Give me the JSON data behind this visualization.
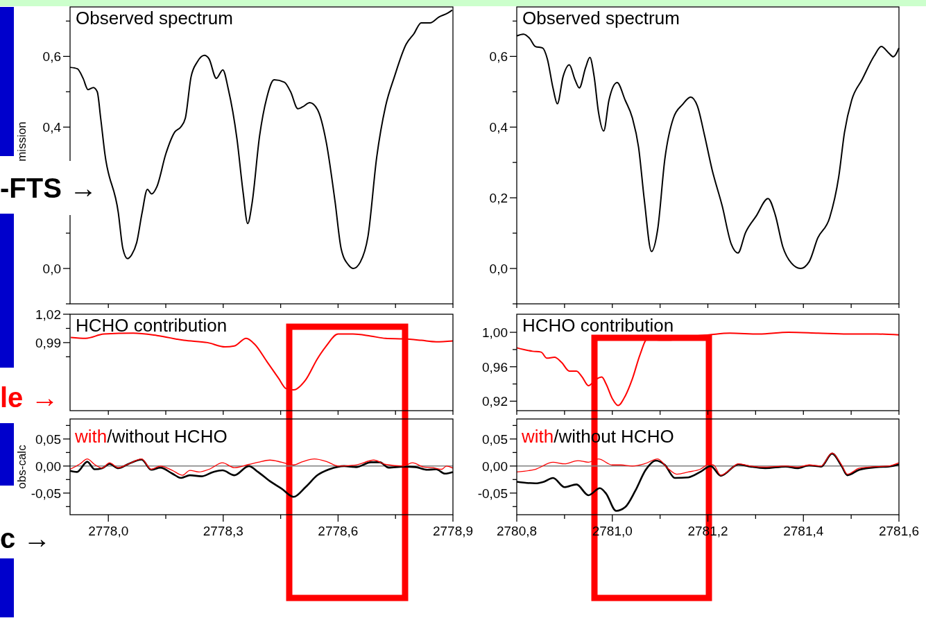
{
  "chart_data": [
    {
      "type": "line",
      "title": "Observed spectrum",
      "ylabel": "mission",
      "annotations": [
        "-FTS →"
      ],
      "tick_labels": "y",
      "xlim": [
        2777.9,
        2778.9
      ],
      "xticks": [
        {
          "value": 2778.0,
          "label": null
        },
        {
          "value": 2778.15,
          "label": null
        },
        {
          "value": 2778.3,
          "label": null
        },
        {
          "value": 2778.45,
          "label": null
        },
        {
          "value": 2778.6,
          "label": null
        },
        {
          "value": 2778.75,
          "label": null
        },
        {
          "value": 2778.9,
          "label": null
        }
      ],
      "ylim": [
        -0.1,
        0.74
      ],
      "yticks": [
        {
          "value": -0.1,
          "label": null
        },
        {
          "value": 0,
          "label": "0,0"
        },
        {
          "value": 0.1,
          "label": null
        },
        {
          "value": 0.2,
          "label": null
        },
        {
          "value": 0.3,
          "label": null
        },
        {
          "value": 0.4,
          "label": "0,4"
        },
        {
          "value": 0.5,
          "label": null
        },
        {
          "value": 0.6,
          "label": "0,6"
        },
        {
          "value": 0.7,
          "label": null
        }
      ],
      "series": [
        {
          "color": "#000000",
          "x": [
            2777.9,
            2777.919,
            2777.934,
            2777.947,
            2777.961,
            2777.971,
            2777.98,
            2777.991,
            2778.026,
            2778.038,
            2778.05,
            2778.061,
            2778.074,
            2778.088,
            2778.102,
            2778.113,
            2778.127,
            2778.15,
            2778.174,
            2778.189,
            2778.201,
            2778.216,
            2778.232,
            2778.251,
            2778.263,
            2778.282,
            2778.299,
            2778.313,
            2778.336,
            2778.352,
            2778.364,
            2778.375,
            2778.395,
            2778.414,
            2778.433,
            2778.46,
            2778.476,
            2778.495,
            2778.507,
            2778.526,
            2778.546,
            2778.569,
            2778.592,
            2778.608,
            2778.627,
            2778.64,
            2778.658,
            2778.678,
            2778.701,
            2778.724,
            2778.747,
            2778.778,
            2778.798,
            2778.817,
            2778.84,
            2778.864,
            2778.887,
            2778.898
          ],
          "values": [
            0.569,
            0.565,
            0.538,
            0.506,
            0.512,
            0.5,
            0.425,
            0.324,
            0.158,
            0.056,
            0.028,
            0.039,
            0.073,
            0.157,
            0.224,
            0.211,
            0.232,
            0.324,
            0.387,
            0.4,
            0.425,
            0.542,
            0.584,
            0.603,
            0.593,
            0.538,
            0.562,
            0.509,
            0.366,
            0.215,
            0.127,
            0.182,
            0.375,
            0.484,
            0.534,
            0.527,
            0.5,
            0.452,
            0.457,
            0.469,
            0.45,
            0.358,
            0.19,
            0.056,
            0.01,
            0.0,
            0.018,
            0.09,
            0.316,
            0.459,
            0.542,
            0.635,
            0.664,
            0.695,
            0.695,
            0.712,
            0.723,
            0.731
          ]
        }
      ]
    },
    {
      "type": "line",
      "title": "Observed spectrum",
      "tick_labels": "y",
      "xlim": [
        2780.8,
        2781.6
      ],
      "xticks": [
        {
          "value": 2780.8,
          "label": null
        },
        {
          "value": 2780.9,
          "label": null
        },
        {
          "value": 2781.0,
          "label": null
        },
        {
          "value": 2781.1,
          "label": null
        },
        {
          "value": 2781.2,
          "label": null
        },
        {
          "value": 2781.3,
          "label": null
        },
        {
          "value": 2781.4,
          "label": null
        },
        {
          "value": 2781.5,
          "label": null
        },
        {
          "value": 2781.6,
          "label": null
        }
      ],
      "ylim": [
        -0.1,
        0.74
      ],
      "yticks": [
        {
          "value": -0.1,
          "label": null
        },
        {
          "value": 0,
          "label": "0,0"
        },
        {
          "value": 0.1,
          "label": null
        },
        {
          "value": 0.2,
          "label": "0,2"
        },
        {
          "value": 0.3,
          "label": null
        },
        {
          "value": 0.4,
          "label": "0,4"
        },
        {
          "value": 0.5,
          "label": null
        },
        {
          "value": 0.6,
          "label": "0,6"
        },
        {
          "value": 0.7,
          "label": null
        }
      ],
      "series": [
        {
          "color": "#000000",
          "x": [
            2780.8,
            2780.814,
            2780.827,
            2780.839,
            2780.854,
            2780.864,
            2780.876,
            2780.885,
            2780.897,
            2780.91,
            2780.922,
            2780.931,
            2780.944,
            2780.953,
            2780.962,
            2780.971,
            2780.982,
            2780.993,
            2781.01,
            2781.027,
            2781.042,
            2781.055,
            2781.067,
            2781.082,
            2781.095,
            2781.11,
            2781.128,
            2781.147,
            2781.164,
            2781.178,
            2781.193,
            2781.209,
            2781.23,
            2781.249,
            2781.263,
            2781.279,
            2781.301,
            2781.326,
            2781.341,
            2781.357,
            2781.375,
            2781.394,
            2781.412,
            2781.43,
            2781.455,
            2781.474,
            2781.486,
            2781.501,
            2781.523,
            2781.548,
            2781.563,
            2781.579,
            2781.588,
            2781.6
          ],
          "values": [
            0.658,
            0.663,
            0.651,
            0.628,
            0.624,
            0.593,
            0.51,
            0.466,
            0.543,
            0.576,
            0.534,
            0.511,
            0.568,
            0.597,
            0.543,
            0.443,
            0.389,
            0.476,
            0.526,
            0.476,
            0.426,
            0.343,
            0.194,
            0.048,
            0.111,
            0.31,
            0.426,
            0.464,
            0.485,
            0.46,
            0.377,
            0.279,
            0.177,
            0.069,
            0.044,
            0.102,
            0.148,
            0.198,
            0.152,
            0.061,
            0.015,
            0.0,
            0.019,
            0.086,
            0.144,
            0.26,
            0.385,
            0.476,
            0.535,
            0.601,
            0.628,
            0.609,
            0.599,
            0.624
          ]
        }
      ]
    },
    {
      "type": "line",
      "title": "HCHO contribution",
      "annotations": [
        "le →"
      ],
      "tick_labels": "y",
      "xlim": [
        2777.9,
        2778.9
      ],
      "xticks": [
        {
          "value": 2778.0,
          "label": null
        },
        {
          "value": 2778.15,
          "label": null
        },
        {
          "value": 2778.3,
          "label": null
        },
        {
          "value": 2778.45,
          "label": null
        },
        {
          "value": 2778.6,
          "label": null
        },
        {
          "value": 2778.75,
          "label": null
        },
        {
          "value": 2778.9,
          "label": null
        }
      ],
      "ylim": [
        0.918,
        1.02
      ],
      "yticks": [
        {
          "value": 0.975,
          "label": null
        },
        {
          "value": 0.99,
          "label": "0,99"
        },
        {
          "value": 1.005,
          "label": null
        },
        {
          "value": 1.02,
          "label": "1,02"
        }
      ],
      "series": [
        {
          "color": "#ff0000",
          "x": [
            2777.902,
            2777.941,
            2777.988,
            2778.065,
            2778.127,
            2778.197,
            2778.259,
            2778.305,
            2778.329,
            2778.36,
            2778.383,
            2778.414,
            2778.445,
            2778.464,
            2778.484,
            2778.515,
            2778.546,
            2778.569,
            2778.6,
            2778.639,
            2778.685,
            2778.724,
            2778.771,
            2778.817,
            2778.856,
            2778.9
          ],
          "values": [
            0.9954,
            0.9945,
            0.999,
            1.0,
            0.9975,
            0.9924,
            0.99,
            0.9855,
            0.9864,
            0.9945,
            0.9879,
            0.97,
            0.952,
            0.9414,
            0.94,
            0.9504,
            0.9729,
            0.9864,
            0.999,
            0.999,
            0.9969,
            0.9945,
            0.9939,
            0.9924,
            0.9909,
            0.9918
          ]
        }
      ]
    },
    {
      "type": "line",
      "title": "HCHO contribution",
      "tick_labels": "y",
      "xlim": [
        2780.8,
        2781.6
      ],
      "xticks": [
        {
          "value": 2780.8,
          "label": null
        },
        {
          "value": 2780.9,
          "label": null
        },
        {
          "value": 2781.0,
          "label": null
        },
        {
          "value": 2781.1,
          "label": null
        },
        {
          "value": 2781.2,
          "label": null
        },
        {
          "value": 2781.3,
          "label": null
        },
        {
          "value": 2781.4,
          "label": null
        },
        {
          "value": 2781.5,
          "label": null
        },
        {
          "value": 2781.6,
          "label": null
        }
      ],
      "ylim": [
        0.909,
        1.021
      ],
      "yticks": [
        {
          "value": 0.92,
          "label": "0,92"
        },
        {
          "value": 0.94,
          "label": null
        },
        {
          "value": 0.96,
          "label": "0,96"
        },
        {
          "value": 0.98,
          "label": null
        },
        {
          "value": 1.0,
          "label": "1,00"
        }
      ],
      "series": [
        {
          "color": "#ff0000",
          "x": [
            2780.8,
            2780.833,
            2780.851,
            2780.863,
            2780.879,
            2780.894,
            2780.91,
            2780.925,
            2780.937,
            2780.95,
            2780.965,
            2780.978,
            2780.987,
            2781.0,
            2781.012,
            2781.027,
            2781.042,
            2781.058,
            2781.073,
            2781.098,
            2781.122,
            2781.159,
            2781.202,
            2781.246,
            2781.307,
            2781.369,
            2781.431,
            2781.492,
            2781.554,
            2781.6
          ],
          "values": [
            0.982,
            0.978,
            0.977,
            0.97,
            0.971,
            0.965,
            0.955,
            0.955,
            0.948,
            0.938,
            0.945,
            0.948,
            0.94,
            0.923,
            0.915,
            0.926,
            0.946,
            0.974,
            0.992,
            0.991,
            0.991,
            0.995,
            0.997,
            0.999,
            0.998,
            1.0,
            0.999,
            0.998,
            0.998,
            0.997
          ]
        }
      ]
    },
    {
      "type": "line",
      "ylabel": "obs-calc",
      "annotations": [
        "c →"
      ],
      "legend": "top left",
      "xlim": [
        2777.9,
        2778.9
      ],
      "xticks": [
        {
          "value": 2778.0,
          "label": "2778,0"
        },
        {
          "value": 2778.15,
          "label": null
        },
        {
          "value": 2778.3,
          "label": "2778,3"
        },
        {
          "value": 2778.45,
          "label": null
        },
        {
          "value": 2778.6,
          "label": "2778,6"
        },
        {
          "value": 2778.75,
          "label": null
        },
        {
          "value": 2778.9,
          "label": "2778,9"
        }
      ],
      "ylim": [
        -0.09,
        0.087
      ],
      "yticks": [
        {
          "value": -0.075,
          "label": null
        },
        {
          "value": -0.05,
          "label": "-0,05"
        },
        {
          "value": -0.025,
          "label": null
        },
        {
          "value": 0,
          "label": "0,00"
        },
        {
          "value": 0.025,
          "label": null
        },
        {
          "value": 0.05,
          "label": "0,05"
        },
        {
          "value": 0.075,
          "label": null
        }
      ],
      "ref_lines": [
        {
          "axis": "y",
          "value": 0,
          "color": "#808080"
        }
      ],
      "series": [
        {
          "name": "with",
          "color": "#ff0000",
          "x": [
            2777.9,
            2777.926,
            2777.945,
            2777.964,
            2777.984,
            2778.003,
            2778.026,
            2778.05,
            2778.087,
            2778.112,
            2778.136,
            2778.167,
            2778.194,
            2778.213,
            2778.236,
            2778.263,
            2778.298,
            2778.329,
            2778.367,
            2778.391,
            2778.422,
            2778.453,
            2778.484,
            2778.507,
            2778.538,
            2778.571,
            2778.6,
            2778.647,
            2778.693,
            2778.724,
            2778.771,
            2778.794,
            2778.825,
            2778.848,
            2778.871,
            2778.883,
            2778.9
          ],
          "values": [
            -0.006,
            0.004,
            0.013,
            0.003,
            -0.004,
            0.006,
            -0.003,
            0.003,
            0.013,
            -0.006,
            0.0,
            -0.008,
            -0.017,
            -0.008,
            -0.011,
            -0.006,
            0.006,
            -0.003,
            0.003,
            0.007,
            0.011,
            0.007,
            0.002,
            0.008,
            0.013,
            0.008,
            0.0,
            0.002,
            0.011,
            0.003,
            0.0,
            0.006,
            -0.002,
            -0.003,
            -0.006,
            0.0,
            -0.004
          ]
        },
        {
          "name": "/without HCHO",
          "color": "#000000",
          "x": [
            2777.9,
            2777.918,
            2777.945,
            2777.964,
            2777.984,
            2778.003,
            2778.026,
            2778.05,
            2778.087,
            2778.112,
            2778.136,
            2778.167,
            2778.19,
            2778.213,
            2778.243,
            2778.274,
            2778.298,
            2778.329,
            2778.367,
            2778.391,
            2778.422,
            2778.453,
            2778.484,
            2778.515,
            2778.546,
            2778.577,
            2778.616,
            2778.647,
            2778.686,
            2778.709,
            2778.732,
            2778.771,
            2778.802,
            2778.833,
            2778.856,
            2778.879,
            2778.9
          ],
          "values": [
            -0.009,
            -0.011,
            0.008,
            -0.006,
            -0.004,
            0.004,
            -0.004,
            0.003,
            0.012,
            -0.007,
            -0.003,
            -0.014,
            -0.022,
            -0.017,
            -0.019,
            -0.011,
            -0.008,
            -0.017,
            0.0,
            -0.011,
            -0.028,
            -0.042,
            -0.057,
            -0.039,
            -0.017,
            -0.006,
            0.0,
            -0.002,
            0.007,
            0.007,
            -0.003,
            -0.001,
            -0.002,
            -0.007,
            -0.006,
            -0.014,
            -0.011
          ]
        }
      ]
    },
    {
      "type": "line",
      "legend": "top left",
      "xlim": [
        2780.8,
        2781.6
      ],
      "xticks": [
        {
          "value": 2780.8,
          "label": "2780,8"
        },
        {
          "value": 2780.9,
          "label": null
        },
        {
          "value": 2781.0,
          "label": "2781,0"
        },
        {
          "value": 2781.1,
          "label": null
        },
        {
          "value": 2781.2,
          "label": "2781,2"
        },
        {
          "value": 2781.3,
          "label": null
        },
        {
          "value": 2781.4,
          "label": "2781,4"
        },
        {
          "value": 2781.5,
          "label": null
        },
        {
          "value": 2781.6,
          "label": "2781,6"
        }
      ],
      "ylim": [
        -0.09,
        0.087
      ],
      "yticks": [
        {
          "value": -0.075,
          "label": null
        },
        {
          "value": -0.05,
          "label": "-0,05"
        },
        {
          "value": -0.025,
          "label": null
        },
        {
          "value": 0,
          "label": "0,00"
        },
        {
          "value": 0.025,
          "label": null
        },
        {
          "value": 0.05,
          "label": "0,05"
        },
        {
          "value": 0.075,
          "label": null
        }
      ],
      "ref_lines": [
        {
          "axis": "y",
          "value": 0,
          "color": "#808080"
        }
      ],
      "series": [
        {
          "name": "with",
          "color": "#ff0000",
          "x": [
            2780.8,
            2780.839,
            2780.876,
            2780.9,
            2780.928,
            2780.95,
            2780.971,
            2781.0,
            2781.018,
            2781.042,
            2781.067,
            2781.095,
            2781.116,
            2781.135,
            2781.159,
            2781.184,
            2781.202,
            2781.212,
            2781.227,
            2781.246,
            2781.264,
            2781.289,
            2781.32,
            2781.363,
            2781.387,
            2781.412,
            2781.437,
            2781.46,
            2781.48,
            2781.492,
            2781.517,
            2781.554,
            2781.578,
            2781.6
          ],
          "values": [
            -0.011,
            -0.006,
            0.007,
            0.004,
            0.01,
            0.007,
            0.013,
            0.002,
            0.002,
            0.0,
            0.004,
            0.013,
            -0.004,
            -0.015,
            -0.011,
            -0.006,
            0.003,
            0.002,
            -0.017,
            -0.007,
            0.004,
            0.0,
            -0.002,
            0.0,
            -0.002,
            0.002,
            0.0,
            0.024,
            0.002,
            -0.015,
            -0.004,
            -0.001,
            0.0,
            0.006
          ]
        },
        {
          "name": "/without HCHO",
          "color": "#000000",
          "x": [
            2780.8,
            2780.839,
            2780.857,
            2780.876,
            2780.9,
            2780.925,
            2780.95,
            2780.974,
            2780.987,
            2781.008,
            2781.027,
            2781.048,
            2781.07,
            2781.091,
            2781.11,
            2781.131,
            2781.159,
            2781.184,
            2781.206,
            2781.227,
            2781.264,
            2781.289,
            2781.32,
            2781.363,
            2781.387,
            2781.412,
            2781.437,
            2781.46,
            2781.48,
            2781.492,
            2781.517,
            2781.554,
            2781.578,
            2781.6
          ],
          "values": [
            -0.029,
            -0.032,
            -0.029,
            -0.022,
            -0.039,
            -0.034,
            -0.054,
            -0.041,
            -0.051,
            -0.083,
            -0.076,
            -0.046,
            -0.007,
            0.01,
            0.002,
            -0.022,
            -0.021,
            -0.011,
            0.0,
            -0.018,
            0.003,
            -0.001,
            -0.004,
            -0.001,
            -0.004,
            0.001,
            -0.001,
            0.023,
            0.0,
            -0.017,
            -0.007,
            -0.002,
            -0.001,
            0.003
          ]
        }
      ]
    }
  ]
}
